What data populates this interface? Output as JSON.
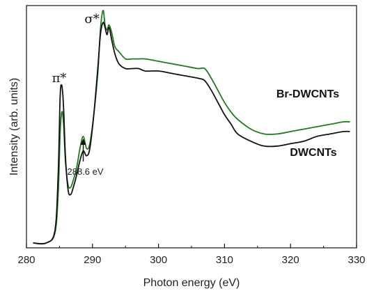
{
  "chart_data": {
    "type": "line",
    "title": "",
    "xlabel": "Photon energy (eV)",
    "ylabel": "Intensity (arb. units)",
    "xlim": [
      280,
      330
    ],
    "ylim": [
      0,
      1
    ],
    "y_ticks_shown": false,
    "grid": false,
    "x_ticks": [
      280,
      290,
      300,
      310,
      320,
      330
    ],
    "series": [
      {
        "name": "Br-DWCNTs",
        "color": "#1f7a1f",
        "x": [
          281,
          283,
          284.3,
          284.8,
          285.1,
          285.35,
          285.6,
          285.9,
          286.3,
          286.7,
          287.1,
          287.6,
          288.1,
          288.6,
          289.1,
          289.6,
          290.2,
          290.8,
          291.2,
          291.6,
          291.9,
          292.2,
          292.5,
          292.9,
          293.4,
          294,
          295,
          296,
          297,
          298,
          300,
          302,
          304,
          306,
          307,
          308,
          309,
          310,
          311,
          312,
          314,
          316,
          318,
          320,
          322,
          324,
          326,
          328,
          329
        ],
        "y": [
          0.02,
          0.02,
          0.06,
          0.22,
          0.47,
          0.56,
          0.52,
          0.36,
          0.26,
          0.25,
          0.28,
          0.33,
          0.41,
          0.46,
          0.41,
          0.43,
          0.55,
          0.72,
          0.9,
          0.98,
          0.92,
          0.9,
          0.92,
          0.89,
          0.83,
          0.81,
          0.78,
          0.78,
          0.78,
          0.78,
          0.77,
          0.76,
          0.75,
          0.74,
          0.74,
          0.7,
          0.65,
          0.6,
          0.56,
          0.53,
          0.49,
          0.47,
          0.47,
          0.48,
          0.49,
          0.5,
          0.51,
          0.52,
          0.52
        ]
      },
      {
        "name": "DWCNTs",
        "color": "#111111",
        "x": [
          281,
          283,
          284.3,
          284.8,
          285.1,
          285.35,
          285.6,
          285.9,
          286.3,
          286.7,
          287.1,
          287.6,
          288.1,
          288.6,
          289.1,
          289.6,
          290.2,
          290.8,
          291.2,
          291.6,
          291.9,
          292.2,
          292.5,
          292.9,
          293.4,
          294,
          295,
          296,
          297,
          298,
          300,
          302,
          304,
          306,
          307,
          308,
          309,
          310,
          311,
          312,
          314,
          316,
          318,
          320,
          322,
          324,
          326,
          328,
          329
        ],
        "y": [
          0.02,
          0.02,
          0.07,
          0.3,
          0.62,
          0.67,
          0.59,
          0.38,
          0.24,
          0.22,
          0.25,
          0.3,
          0.36,
          0.4,
          0.38,
          0.41,
          0.55,
          0.74,
          0.88,
          0.93,
          0.91,
          0.88,
          0.91,
          0.86,
          0.8,
          0.76,
          0.74,
          0.74,
          0.74,
          0.73,
          0.73,
          0.72,
          0.71,
          0.7,
          0.69,
          0.65,
          0.6,
          0.55,
          0.51,
          0.47,
          0.44,
          0.42,
          0.42,
          0.43,
          0.44,
          0.46,
          0.47,
          0.48,
          0.48
        ]
      }
    ],
    "annotations": {
      "pi_star": "π*",
      "sigma_star": "σ*",
      "energy_note": "288.6 eV",
      "energy_note_x": 288.6
    }
  }
}
